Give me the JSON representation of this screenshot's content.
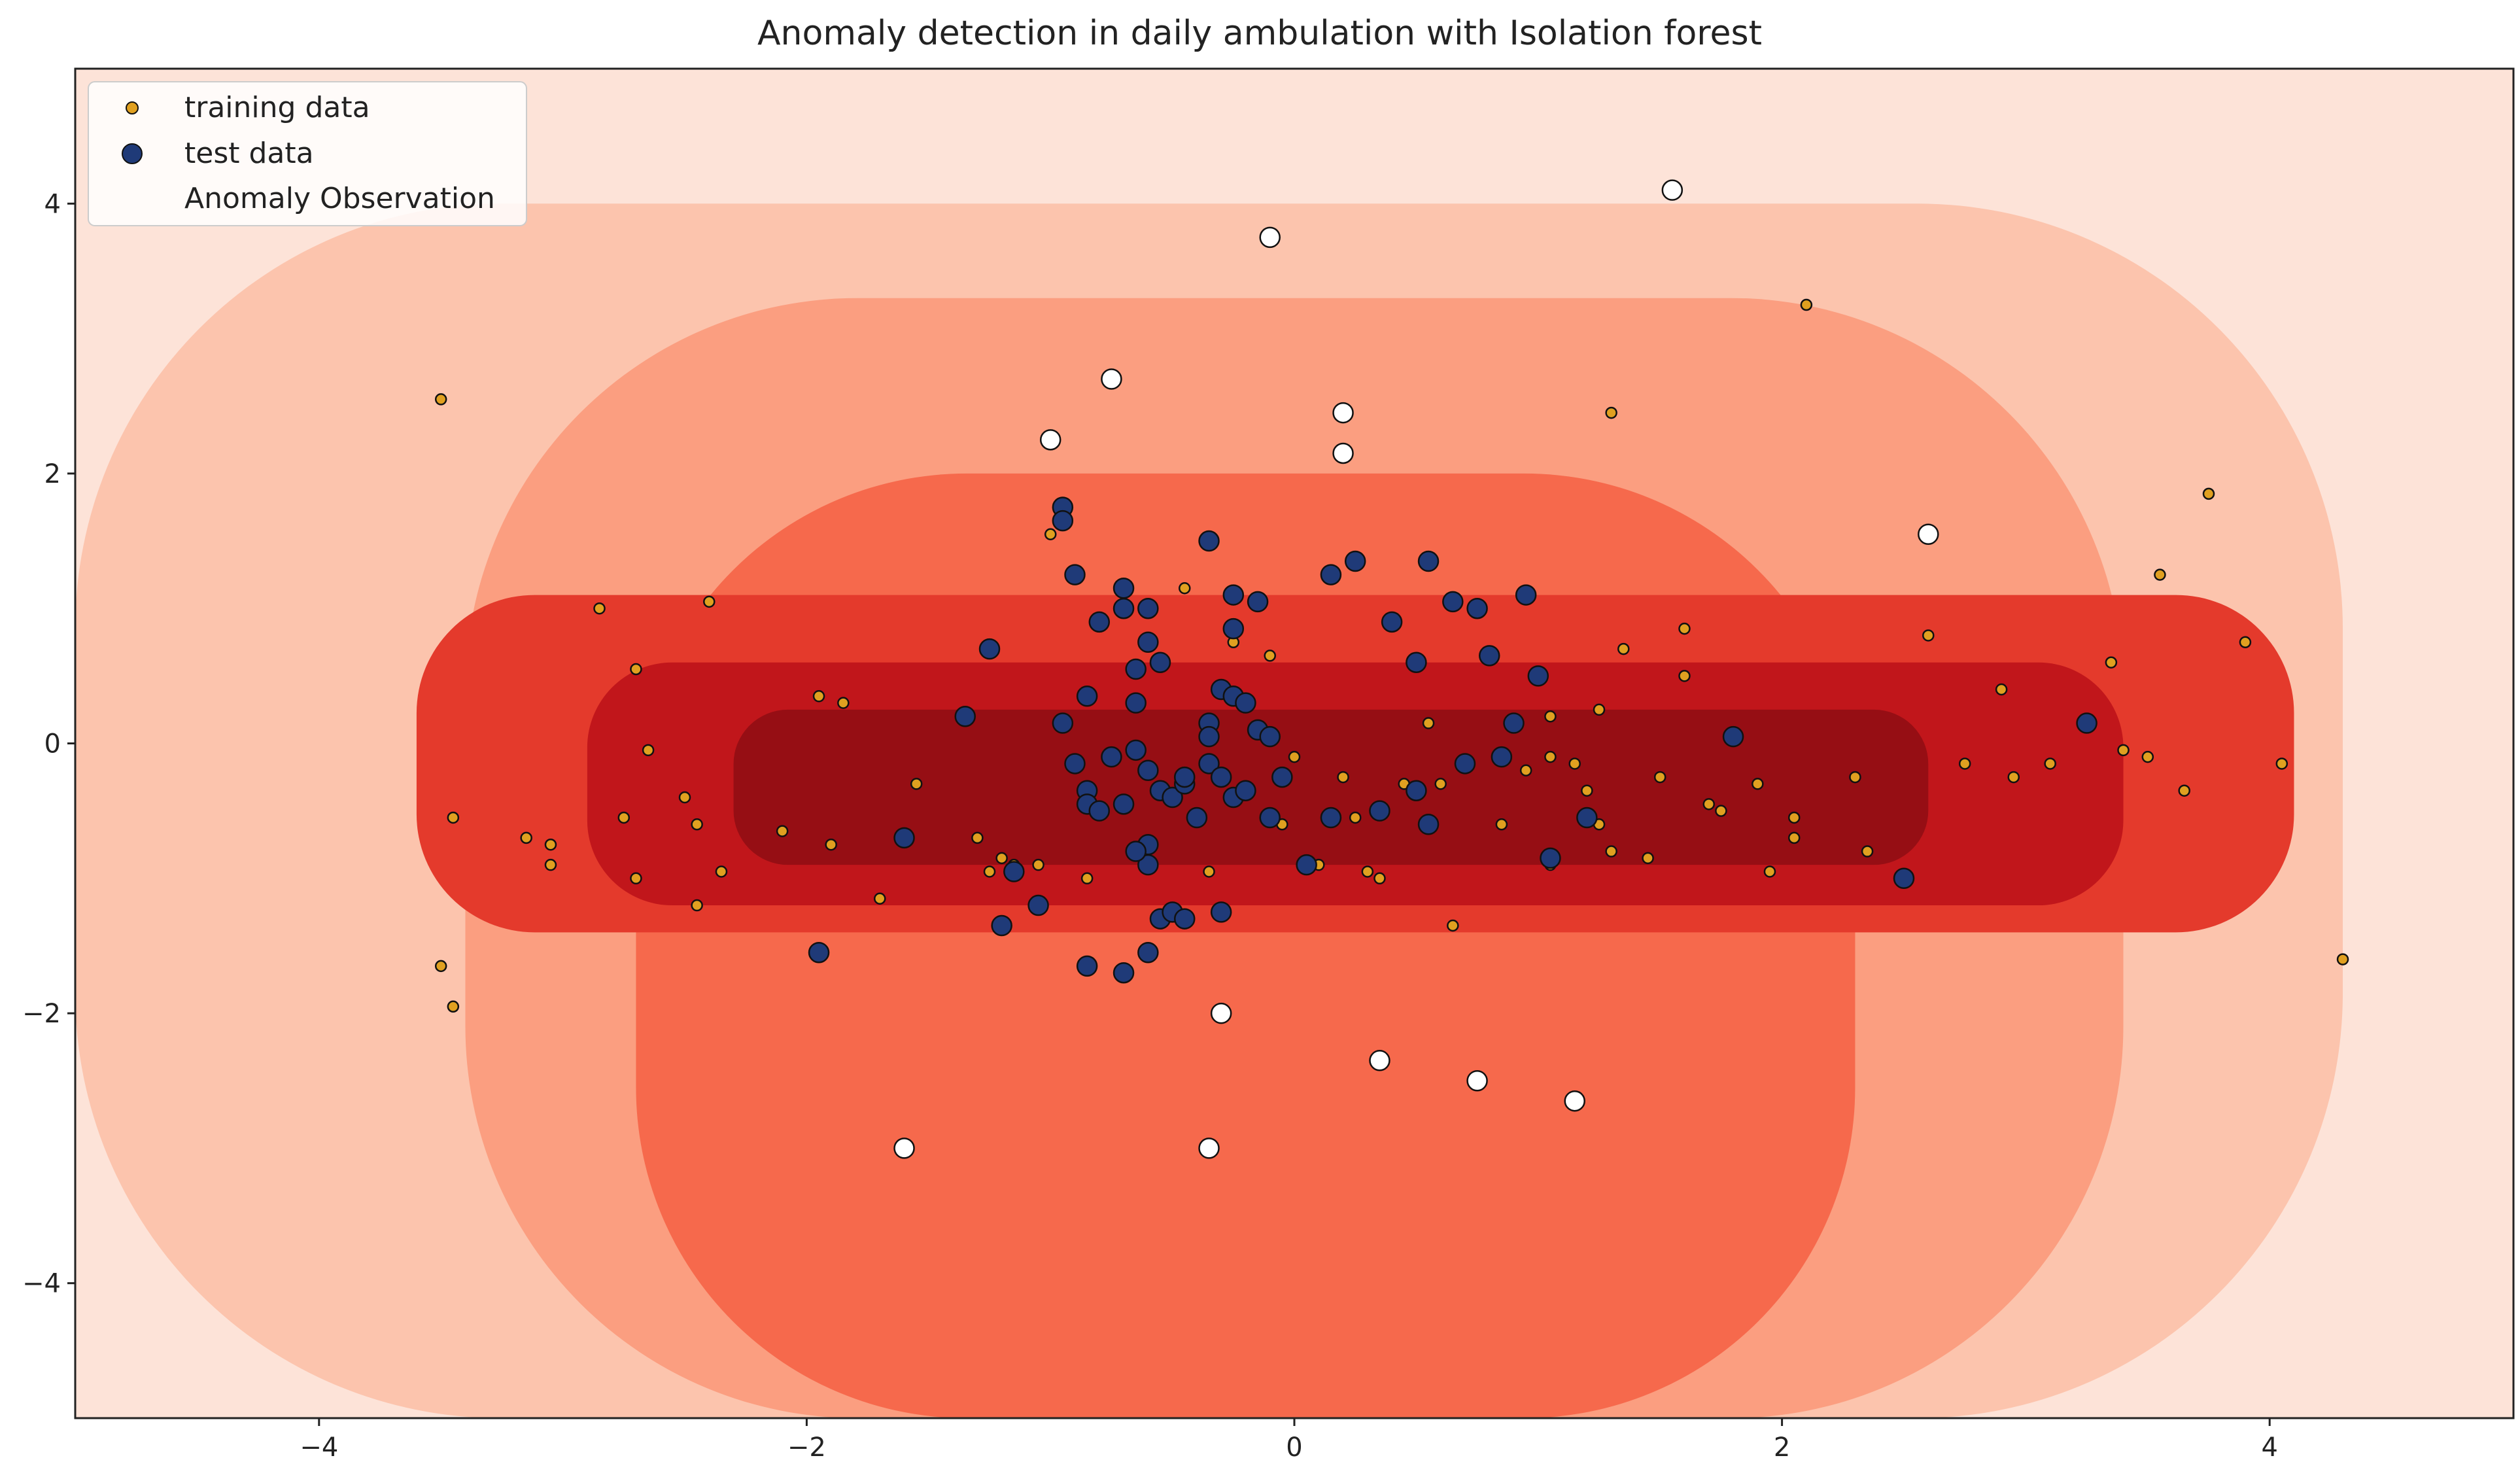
{
  "chart_data": {
    "type": "scatter",
    "title": "Anomaly detection in daily ambulation with Isolation forest",
    "xlabel": "",
    "ylabel": "",
    "xlim": [
      -5,
      5
    ],
    "ylim": [
      -5,
      5
    ],
    "x_ticks": [
      -4,
      -2,
      0,
      2,
      4
    ],
    "y_ticks": [
      -4,
      -2,
      0,
      2,
      4
    ],
    "x_tick_labels": [
      "−4",
      "−2",
      "0",
      "2",
      "4"
    ],
    "y_tick_labels": [
      "−4",
      "−2",
      "0",
      "2",
      "4"
    ],
    "grid": false,
    "legend_position": "top-left",
    "colors": {
      "training": "#e0a020",
      "test": "#1f3a78",
      "anomaly": "#ffffff",
      "marker_edge": "#111111",
      "levels": [
        "#fde3d8",
        "#fcc4ad",
        "#fb9e80",
        "#f6694c",
        "#e43a2c",
        "#c1161b",
        "#960e14"
      ]
    },
    "contour_regions": [
      {
        "level": 0,
        "label": "lowest score (background)",
        "shape": "full frame"
      },
      {
        "level": 1,
        "x_range": [
          -5,
          4.3
        ],
        "y_range": [
          -5,
          4.0
        ]
      },
      {
        "level": 2,
        "x_range": [
          -3.4,
          3.4
        ],
        "y_range": [
          -5,
          3.3
        ]
      },
      {
        "level": 3,
        "x_range": [
          -2.7,
          2.3
        ],
        "y_range": [
          -5,
          2.0
        ]
      },
      {
        "level": 4,
        "x_range": [
          -3.6,
          4.1
        ],
        "y_range": [
          -1.4,
          1.1
        ]
      },
      {
        "level": 5,
        "x_range": [
          -2.9,
          3.4
        ],
        "y_range": [
          -1.2,
          0.6
        ]
      },
      {
        "level": 6,
        "x_range": [
          -2.3,
          2.6
        ],
        "y_range": [
          -0.9,
          0.25
        ]
      }
    ],
    "series": [
      {
        "name": "training data",
        "marker": "small circle",
        "points": [
          [
            -3.5,
            2.55
          ],
          [
            -2.85,
            1.0
          ],
          [
            -2.4,
            1.05
          ],
          [
            -2.7,
            0.55
          ],
          [
            -2.65,
            -0.05
          ],
          [
            -3.45,
            -0.55
          ],
          [
            -3.15,
            -0.7
          ],
          [
            -3.05,
            -0.75
          ],
          [
            -3.05,
            -0.9
          ],
          [
            -2.7,
            -1.0
          ],
          [
            -2.75,
            -0.55
          ],
          [
            -2.5,
            -0.4
          ],
          [
            -2.45,
            -0.6
          ],
          [
            -2.35,
            -0.95
          ],
          [
            -2.45,
            -1.2
          ],
          [
            -2.1,
            -0.65
          ],
          [
            -1.95,
            0.35
          ],
          [
            -1.85,
            0.3
          ],
          [
            -1.9,
            -0.75
          ],
          [
            -1.55,
            -0.3
          ],
          [
            -1.7,
            -1.15
          ],
          [
            -1.3,
            -0.7
          ],
          [
            -1.25,
            -0.95
          ],
          [
            -1.15,
            -0.9
          ],
          [
            -1.0,
            1.55
          ],
          [
            -0.85,
            -1.0
          ],
          [
            -0.45,
            1.15
          ],
          [
            -0.25,
            0.75
          ],
          [
            -0.1,
            0.65
          ],
          [
            -0.05,
            -0.6
          ],
          [
            0.1,
            -0.9
          ],
          [
            0.2,
            -0.25
          ],
          [
            0.25,
            -0.55
          ],
          [
            0.3,
            -0.95
          ],
          [
            0.45,
            -0.3
          ],
          [
            0.55,
            0.15
          ],
          [
            0.85,
            -0.6
          ],
          [
            0.95,
            -0.2
          ],
          [
            1.05,
            0.2
          ],
          [
            1.05,
            -0.1
          ],
          [
            1.15,
            -0.15
          ],
          [
            1.2,
            -0.35
          ],
          [
            1.25,
            0.25
          ],
          [
            1.25,
            -0.6
          ],
          [
            1.3,
            -0.8
          ],
          [
            1.35,
            0.7
          ],
          [
            1.45,
            -0.85
          ],
          [
            1.5,
            -0.25
          ],
          [
            1.6,
            0.85
          ],
          [
            1.6,
            0.5
          ],
          [
            1.7,
            -0.45
          ],
          [
            1.75,
            -0.5
          ],
          [
            1.9,
            -0.3
          ],
          [
            1.95,
            -0.95
          ],
          [
            2.05,
            -0.55
          ],
          [
            2.05,
            -0.7
          ],
          [
            2.3,
            -0.25
          ],
          [
            2.35,
            -0.8
          ],
          [
            2.6,
            0.8
          ],
          [
            2.75,
            -0.15
          ],
          [
            2.9,
            0.4
          ],
          [
            2.95,
            -0.25
          ],
          [
            3.1,
            -0.15
          ],
          [
            3.35,
            0.6
          ],
          [
            3.4,
            -0.05
          ],
          [
            3.5,
            -0.1
          ],
          [
            3.55,
            1.25
          ],
          [
            3.65,
            -0.35
          ],
          [
            3.75,
            1.85
          ],
          [
            3.9,
            0.75
          ],
          [
            4.05,
            -0.15
          ],
          [
            4.3,
            -1.6
          ],
          [
            1.3,
            2.45
          ],
          [
            2.1,
            3.25
          ],
          [
            -3.5,
            -1.65
          ],
          [
            -3.45,
            -1.95
          ],
          [
            0.65,
            -1.35
          ],
          [
            -1.05,
            -0.9
          ],
          [
            -1.2,
            -0.85
          ],
          [
            0.0,
            -0.1
          ],
          [
            0.6,
            -0.3
          ],
          [
            0.35,
            -1.0
          ],
          [
            -0.35,
            -0.95
          ],
          [
            1.05,
            -0.9
          ]
        ]
      },
      {
        "name": "test data",
        "marker": "large circle",
        "points": [
          [
            -0.95,
            1.75
          ],
          [
            -0.95,
            1.65
          ],
          [
            -0.9,
            1.25
          ],
          [
            -0.35,
            1.5
          ],
          [
            -0.25,
            1.1
          ],
          [
            -0.25,
            0.85
          ],
          [
            -0.15,
            1.05
          ],
          [
            0.15,
            1.25
          ],
          [
            0.25,
            1.35
          ],
          [
            0.55,
            1.35
          ],
          [
            0.65,
            1.05
          ],
          [
            0.75,
            1.0
          ],
          [
            0.95,
            1.1
          ],
          [
            0.4,
            0.9
          ],
          [
            0.5,
            0.6
          ],
          [
            0.8,
            0.65
          ],
          [
            1.0,
            0.5
          ],
          [
            -0.7,
            1.15
          ],
          [
            -0.7,
            1.0
          ],
          [
            -0.6,
            1.0
          ],
          [
            -0.8,
            0.9
          ],
          [
            -0.6,
            0.75
          ],
          [
            -0.55,
            0.6
          ],
          [
            -1.25,
            0.7
          ],
          [
            -1.35,
            0.2
          ],
          [
            -0.95,
            0.15
          ],
          [
            -0.85,
            0.35
          ],
          [
            -0.65,
            0.55
          ],
          [
            -0.65,
            0.3
          ],
          [
            -0.35,
            0.15
          ],
          [
            -0.35,
            0.05
          ],
          [
            -0.3,
            0.4
          ],
          [
            -0.25,
            0.35
          ],
          [
            -0.2,
            0.3
          ],
          [
            -0.15,
            0.1
          ],
          [
            -0.1,
            0.05
          ],
          [
            -0.9,
            -0.15
          ],
          [
            -0.85,
            -0.35
          ],
          [
            -0.85,
            -0.45
          ],
          [
            -0.8,
            -0.5
          ],
          [
            -0.7,
            -0.45
          ],
          [
            -0.65,
            -0.05
          ],
          [
            -0.6,
            -0.2
          ],
          [
            -0.55,
            -0.35
          ],
          [
            -0.5,
            -0.4
          ],
          [
            -0.45,
            -0.3
          ],
          [
            -0.45,
            -0.25
          ],
          [
            -0.4,
            -0.55
          ],
          [
            -0.35,
            -0.15
          ],
          [
            -0.3,
            -0.25
          ],
          [
            -0.25,
            -0.4
          ],
          [
            -0.2,
            -0.35
          ],
          [
            -0.1,
            -0.55
          ],
          [
            -0.05,
            -0.25
          ],
          [
            0.05,
            -0.9
          ],
          [
            0.15,
            -0.55
          ],
          [
            0.35,
            -0.5
          ],
          [
            0.5,
            -0.35
          ],
          [
            0.55,
            -0.6
          ],
          [
            0.7,
            -0.15
          ],
          [
            0.85,
            -0.1
          ],
          [
            0.9,
            0.15
          ],
          [
            1.05,
            -0.85
          ],
          [
            1.2,
            -0.55
          ],
          [
            1.8,
            0.05
          ],
          [
            2.5,
            -1.0
          ],
          [
            3.25,
            0.15
          ],
          [
            -0.6,
            -0.75
          ],
          [
            -0.6,
            -0.9
          ],
          [
            -0.55,
            -1.3
          ],
          [
            -0.5,
            -1.25
          ],
          [
            -0.45,
            -1.3
          ],
          [
            -0.3,
            -1.25
          ],
          [
            -0.65,
            -0.8
          ],
          [
            -1.05,
            -1.2
          ],
          [
            -1.2,
            -1.35
          ],
          [
            -1.15,
            -0.95
          ],
          [
            -1.6,
            -0.7
          ],
          [
            -1.95,
            -1.55
          ],
          [
            -0.85,
            -1.65
          ],
          [
            -0.7,
            -1.7
          ],
          [
            -0.6,
            -1.55
          ],
          [
            -0.75,
            -0.1
          ]
        ]
      },
      {
        "name": "Anomaly Observation",
        "marker": "white circle",
        "points": [
          [
            1.55,
            4.1
          ],
          [
            -0.1,
            3.75
          ],
          [
            -0.75,
            2.7
          ],
          [
            -1.0,
            2.25
          ],
          [
            0.2,
            2.45
          ],
          [
            0.2,
            2.15
          ],
          [
            2.6,
            1.55
          ],
          [
            -0.3,
            -2.0
          ],
          [
            0.35,
            -2.35
          ],
          [
            0.75,
            -2.5
          ],
          [
            1.15,
            -2.65
          ],
          [
            -1.6,
            -3.0
          ],
          [
            -0.35,
            -3.0
          ]
        ]
      }
    ]
  }
}
